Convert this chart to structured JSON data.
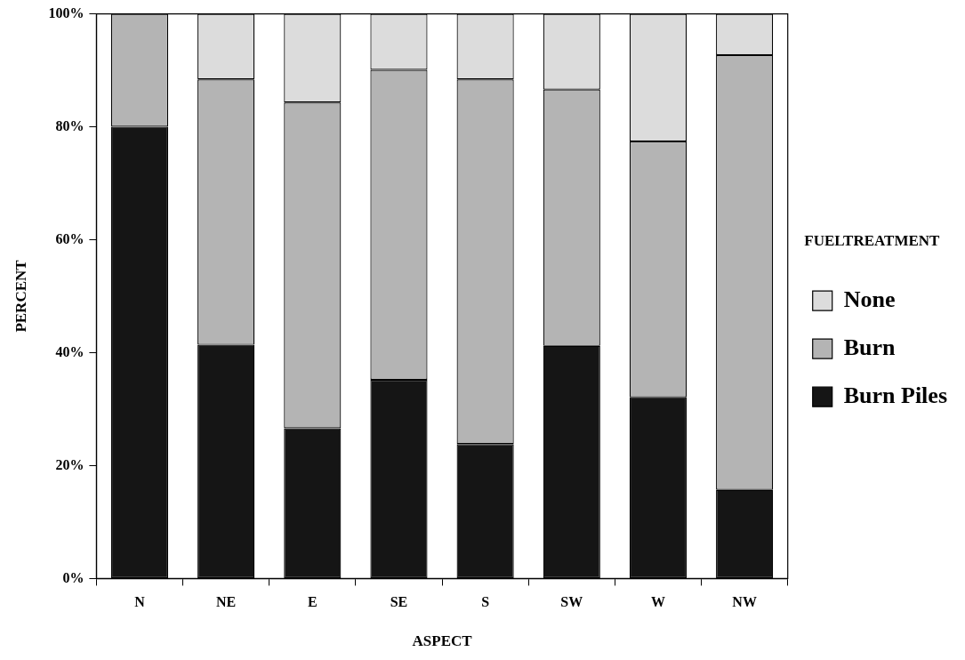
{
  "chart_data": {
    "type": "bar",
    "stacked": true,
    "xlabel": "ASPECT",
    "ylabel": "PERCENT",
    "legend_title": "FUELTREATMENT",
    "legend": "right",
    "categories": [
      "N",
      "NE",
      "E",
      "SE",
      "S",
      "SW",
      "W",
      "NW"
    ],
    "series": [
      {
        "name": "Burn Piles",
        "color": "#151515",
        "values": [
          80,
          41.4,
          26.6,
          35.2,
          23.8,
          41.2,
          32.1,
          15.7
        ]
      },
      {
        "name": "Burn",
        "color": "#b4b4b4",
        "values": [
          20,
          47.0,
          57.7,
          54.9,
          64.6,
          45.4,
          45.3,
          77.0
        ]
      },
      {
        "name": "None",
        "color": "#dcdcdc",
        "values": [
          0,
          11.6,
          15.7,
          9.9,
          11.6,
          13.4,
          22.6,
          7.3
        ]
      }
    ],
    "ylim": [
      0,
      100
    ],
    "yticks": [
      {
        "value": 0,
        "label": "0%"
      },
      {
        "value": 20,
        "label": "20%"
      },
      {
        "value": 40,
        "label": "40%"
      },
      {
        "value": 60,
        "label": "60%"
      },
      {
        "value": 80,
        "label": "80%"
      },
      {
        "value": 100,
        "label": "100%"
      }
    ],
    "grid": false
  }
}
